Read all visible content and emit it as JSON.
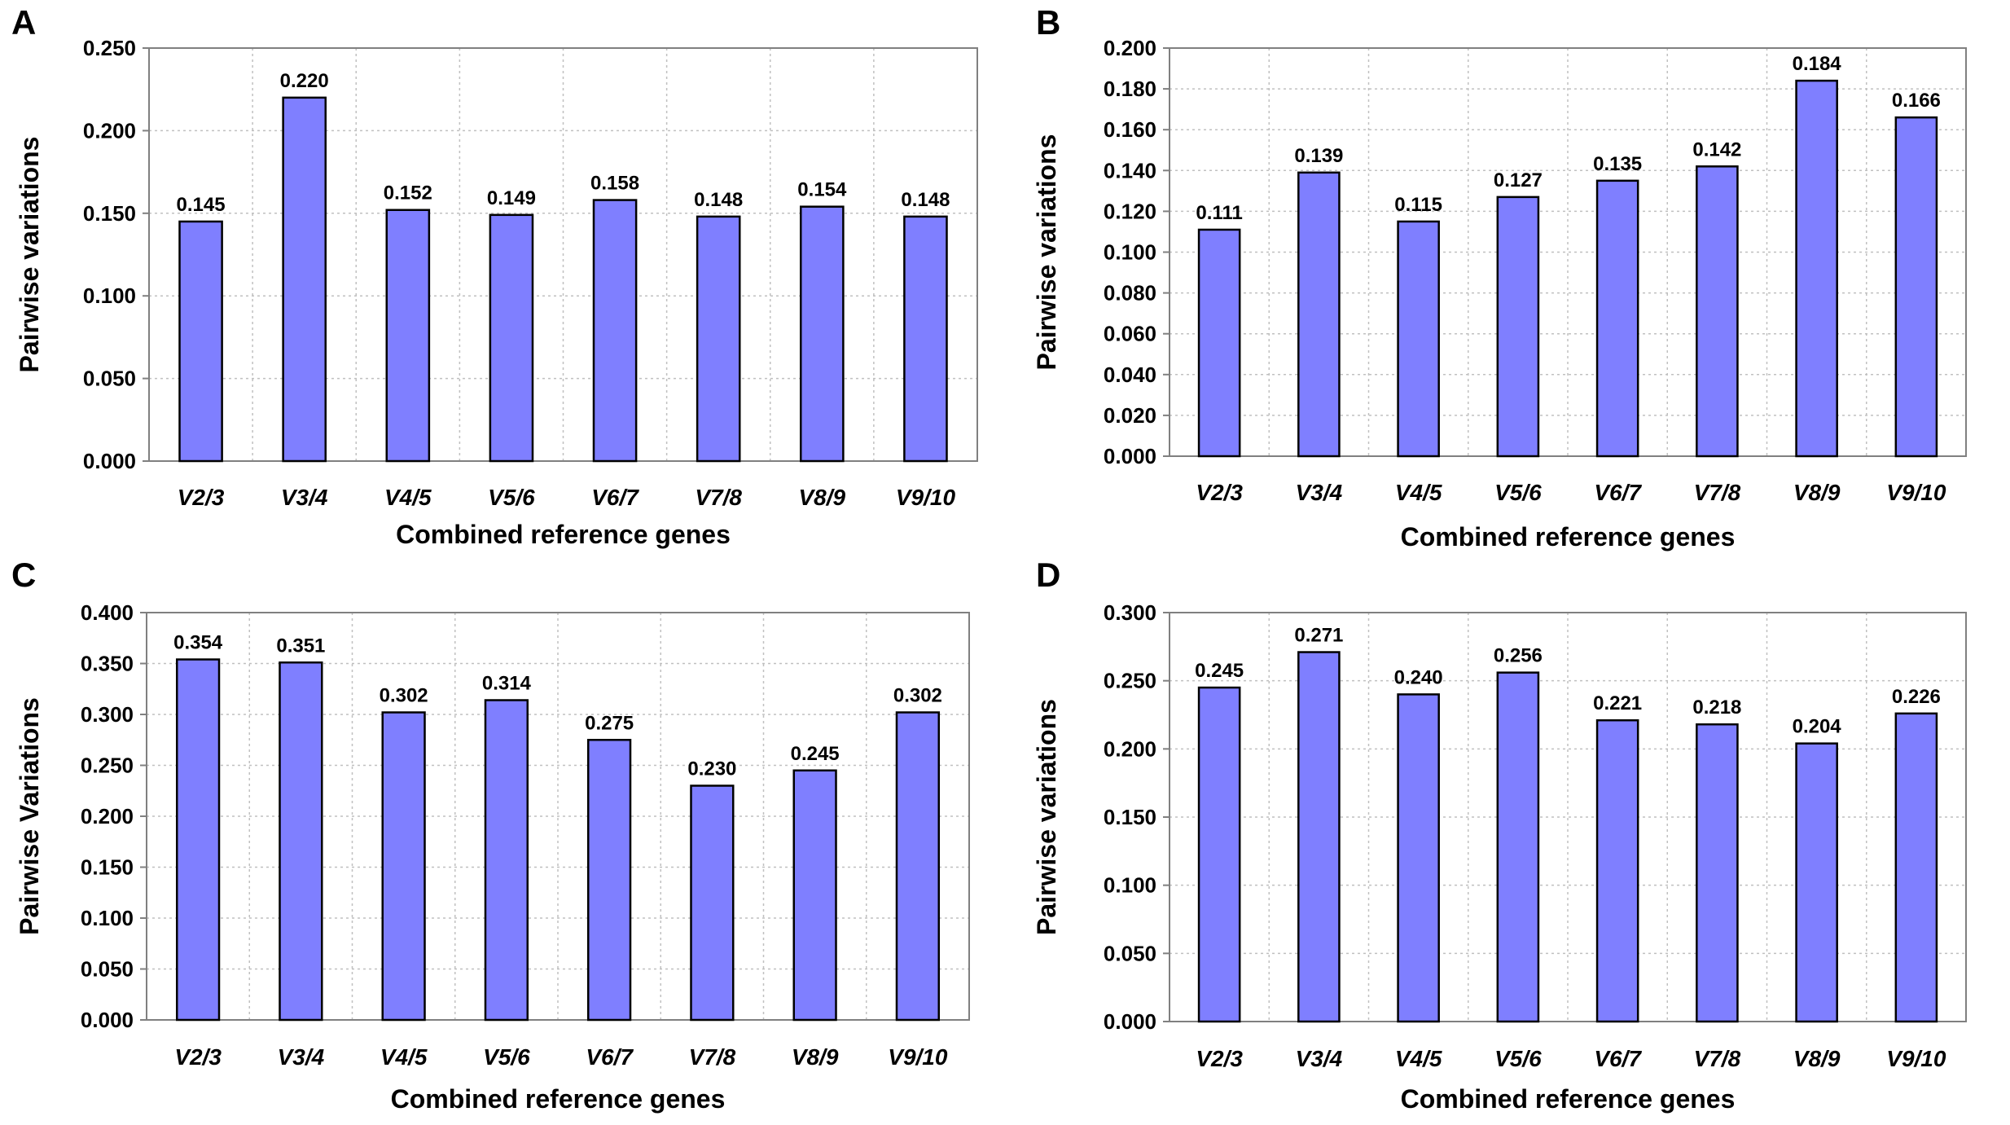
{
  "colors": {
    "bar": "#7f7fff",
    "bar_edge": "#000000",
    "grid": "#c0c0c0"
  },
  "chart_data": [
    {
      "panel": "A",
      "type": "bar",
      "categories": [
        "V2/3",
        "V3/4",
        "V4/5",
        "V5/6",
        "V6/7",
        "V7/8",
        "V8/9",
        "V9/10"
      ],
      "values": [
        0.145,
        0.22,
        0.152,
        0.149,
        0.158,
        0.148,
        0.154,
        0.148
      ],
      "value_labels": [
        "0.145",
        "0.220",
        "0.152",
        "0.149",
        "0.158",
        "0.148",
        "0.154",
        "0.148"
      ],
      "ylim": [
        0,
        0.25
      ],
      "yticks": [
        "0.000",
        "0.050",
        "0.100",
        "0.150",
        "0.200",
        "0.250"
      ],
      "xlabel": "Combined reference genes",
      "ylabel": "Pairwise variations",
      "grid": true
    },
    {
      "panel": "B",
      "type": "bar",
      "categories": [
        "V2/3",
        "V3/4",
        "V4/5",
        "V5/6",
        "V6/7",
        "V7/8",
        "V8/9",
        "V9/10"
      ],
      "values": [
        0.111,
        0.139,
        0.115,
        0.127,
        0.135,
        0.142,
        0.184,
        0.166
      ],
      "value_labels": [
        "0.111",
        "0.139",
        "0.115",
        "0.127",
        "0.135",
        "0.142",
        "0.184",
        "0.166"
      ],
      "ylim": [
        0,
        0.2
      ],
      "yticks": [
        "0.000",
        "0.020",
        "0.040",
        "0.060",
        "0.080",
        "0.100",
        "0.120",
        "0.140",
        "0.160",
        "0.180",
        "0.200"
      ],
      "xlabel": "Combined reference genes",
      "ylabel": "Pairwise variations",
      "grid": true
    },
    {
      "panel": "C",
      "type": "bar",
      "categories": [
        "V2/3",
        "V3/4",
        "V4/5",
        "V5/6",
        "V6/7",
        "V7/8",
        "V8/9",
        "V9/10"
      ],
      "values": [
        0.354,
        0.351,
        0.302,
        0.314,
        0.275,
        0.23,
        0.245,
        0.302
      ],
      "value_labels": [
        "0.354",
        "0.351",
        "0.302",
        "0.314",
        "0.275",
        "0.230",
        "0.245",
        "0.302"
      ],
      "ylim": [
        0,
        0.4
      ],
      "yticks": [
        "0.000",
        "0.050",
        "0.100",
        "0.150",
        "0.200",
        "0.250",
        "0.300",
        "0.350",
        "0.400"
      ],
      "xlabel": "Combined reference genes",
      "ylabel": "Pairwise Variations",
      "grid": true
    },
    {
      "panel": "D",
      "type": "bar",
      "categories": [
        "V2/3",
        "V3/4",
        "V4/5",
        "V5/6",
        "V6/7",
        "V7/8",
        "V8/9",
        "V9/10"
      ],
      "values": [
        0.245,
        0.271,
        0.24,
        0.256,
        0.221,
        0.218,
        0.204,
        0.226
      ],
      "value_labels": [
        "0.245",
        "0.271",
        "0.240",
        "0.256",
        "0.221",
        "0.218",
        "0.204",
        "0.226"
      ],
      "ylim": [
        0,
        0.3
      ],
      "yticks": [
        "0.000",
        "0.050",
        "0.100",
        "0.150",
        "0.200",
        "0.250",
        "0.300"
      ],
      "xlabel": "Combined reference genes",
      "ylabel": "Pairwise variations",
      "grid": true
    }
  ]
}
